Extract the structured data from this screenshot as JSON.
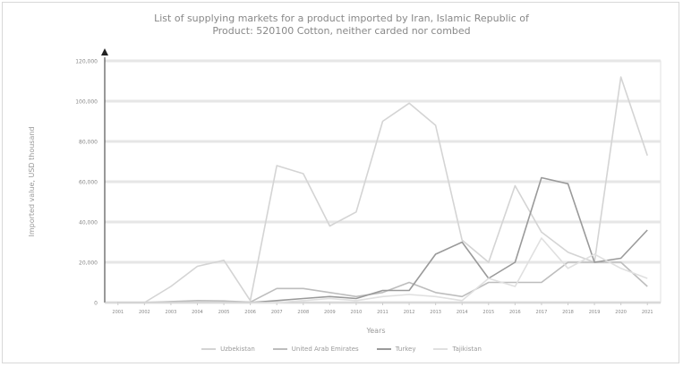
{
  "chart_data": {
    "type": "line",
    "title": "List of supplying markets for a product imported by Iran, Islamic Republic of",
    "subtitle": "Product: 520100 Cotton, neither carded nor combed",
    "xlabel": "Years",
    "ylabel": "Imported value, USD thousand",
    "ylim": [
      0,
      120000
    ],
    "yticks": [
      "0",
      "20,000",
      "40,000",
      "60,000",
      "80,000",
      "100,000",
      "120,000"
    ],
    "grid": true,
    "legend": "bottom",
    "categories": [
      "2001",
      "2002",
      "2003",
      "2004",
      "2005",
      "2006",
      "2007",
      "2008",
      "2009",
      "2010",
      "2011",
      "2012",
      "2013",
      "2014",
      "2015",
      "2016",
      "2017",
      "2018",
      "2019",
      "2020",
      "2021"
    ],
    "series": [
      {
        "name": "Uzbekistan",
        "color": "#d4d4d4",
        "values": [
          0,
          0,
          8000,
          18000,
          21000,
          1000,
          68000,
          64000,
          38000,
          45000,
          90000,
          99000,
          88000,
          31000,
          20000,
          58000,
          35000,
          25000,
          20000,
          112000,
          73000
        ]
      },
      {
        "name": "United Arab Emirates",
        "color": "#bdbdbd",
        "values": [
          0,
          0,
          500,
          1000,
          800,
          200,
          7000,
          7000,
          5000,
          3000,
          5000,
          10000,
          5000,
          3000,
          10000,
          10000,
          10000,
          20000,
          20000,
          20000,
          8000
        ]
      },
      {
        "name": "Turkey",
        "color": "#9a9a9a",
        "values": [
          0,
          0,
          0,
          0,
          0,
          0,
          1000,
          2000,
          3000,
          2000,
          6000,
          6000,
          24000,
          30000,
          12000,
          20000,
          62000,
          59000,
          20000,
          22000,
          36000
        ]
      },
      {
        "name": "Tajikistan",
        "color": "#e0e0e0",
        "values": [
          0,
          0,
          0,
          0,
          0,
          0,
          0,
          1000,
          2000,
          1000,
          3000,
          4000,
          3000,
          1000,
          12000,
          8000,
          32000,
          17000,
          24000,
          17000,
          12000
        ]
      }
    ]
  }
}
